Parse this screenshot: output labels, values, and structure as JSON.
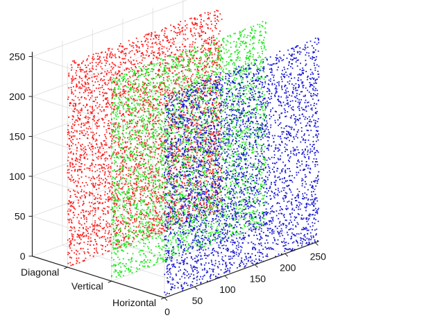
{
  "chart_data": {
    "type": "scatter",
    "projection": "3d",
    "title": "",
    "grid": true,
    "legend": "none",
    "z_axis": {
      "ticks": [
        0,
        50,
        100,
        150,
        200,
        250
      ],
      "tick_labels": [
        "0",
        "50",
        "100",
        "150",
        "200",
        "250"
      ],
      "range": [
        0,
        256
      ]
    },
    "x_axis": {
      "ticks": [
        0,
        50,
        100,
        150,
        200,
        250
      ],
      "tick_labels": [
        "0",
        "50",
        "100",
        "150",
        "200",
        "250"
      ],
      "range": [
        0,
        256
      ]
    },
    "category_axis": {
      "categories": [
        "Diagonal",
        "Vertical",
        "Horizontal"
      ]
    },
    "series": [
      {
        "category": "Diagonal",
        "color": "#ff1a1a",
        "point_count": 3600,
        "x_range": [
          0,
          256
        ],
        "z_range": [
          0,
          256
        ]
      },
      {
        "category": "Vertical",
        "color": "#22e822",
        "point_count": 3600,
        "x_range": [
          0,
          256
        ],
        "z_range": [
          0,
          256
        ]
      },
      {
        "category": "Horizontal",
        "color": "#1a1ad6",
        "point_count": 3600,
        "x_range": [
          0,
          256
        ],
        "z_range": [
          0,
          256
        ]
      }
    ]
  }
}
